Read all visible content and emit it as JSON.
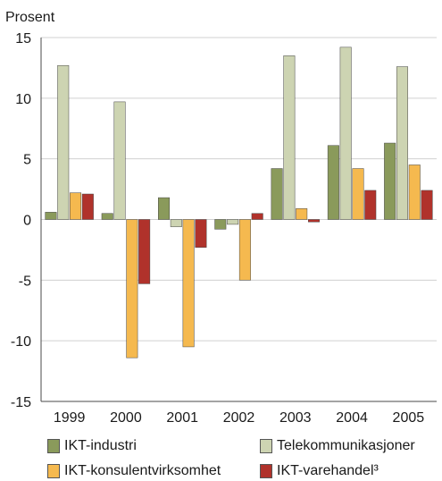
{
  "chart_data": {
    "type": "bar",
    "ylabel": "Prosent",
    "ylim": [
      -15,
      15
    ],
    "yticks": [
      15,
      10,
      5,
      0,
      -5,
      -10,
      -15
    ],
    "ytick_labels": [
      "15",
      "10",
      "5",
      "0",
      "-5",
      "-10",
      "-15"
    ],
    "categories": [
      "1999",
      "2000",
      "2001",
      "2002",
      "2003",
      "2004",
      "2005"
    ],
    "grid": true,
    "legend_position": "bottom",
    "series": [
      {
        "name": "IKT-industri",
        "color": "#8a9a5b",
        "values": [
          0.6,
          0.5,
          1.8,
          -0.8,
          4.2,
          6.1,
          6.3
        ]
      },
      {
        "name": "Telekommunikasjoner",
        "color": "#cdd4b2",
        "values": [
          12.7,
          9.7,
          -0.6,
          -0.4,
          13.5,
          14.2,
          12.6
        ]
      },
      {
        "name": "IKT-konsulentvirksomhet",
        "color": "#f5b94f",
        "values": [
          2.2,
          -11.4,
          -10.5,
          -5.0,
          0.9,
          4.2,
          4.5
        ]
      },
      {
        "name": "IKT-varehandel³",
        "color": "#b0322b",
        "values": [
          2.1,
          -5.3,
          -2.3,
          0.5,
          -0.2,
          2.4,
          2.4
        ]
      }
    ]
  }
}
